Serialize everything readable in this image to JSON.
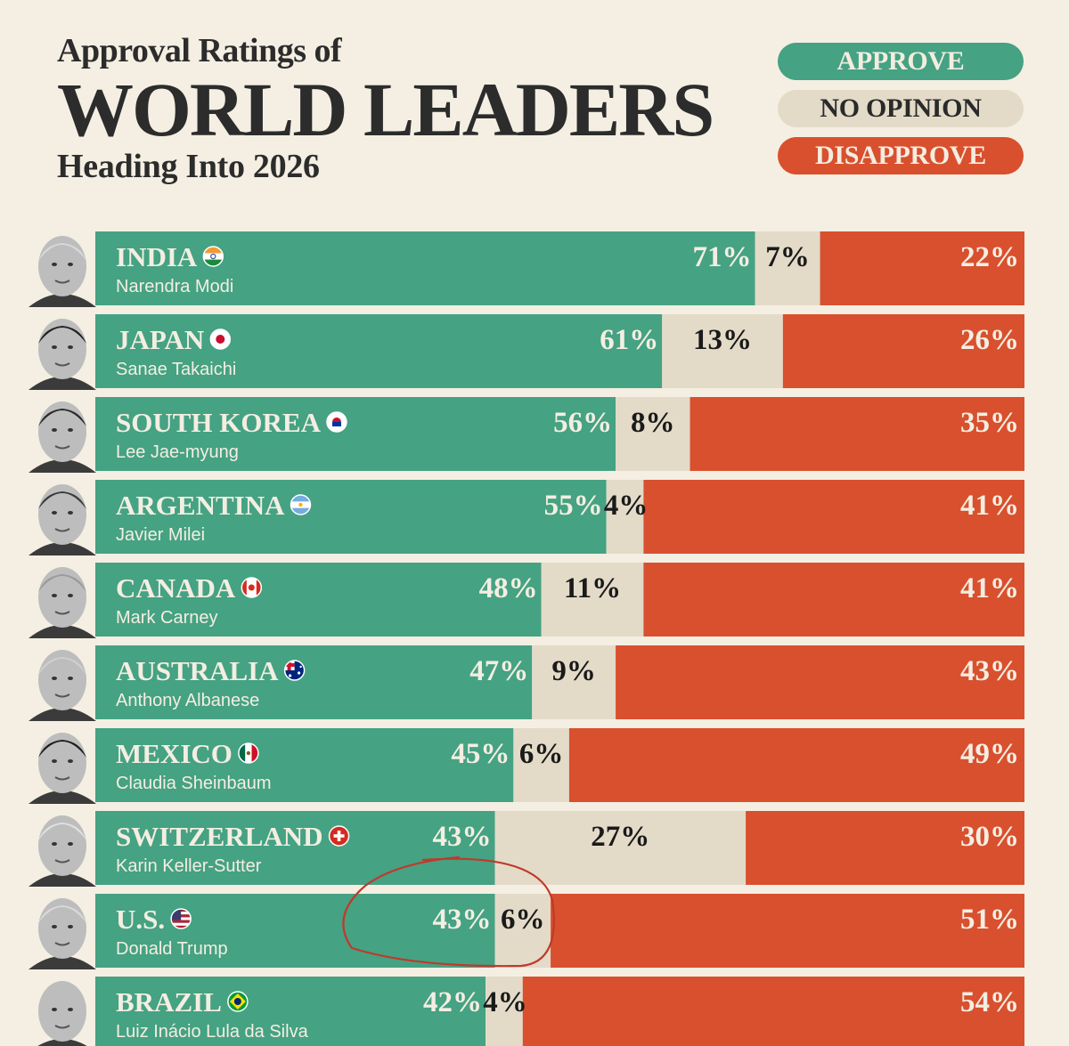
{
  "header": {
    "pre_title": "Approval Ratings of",
    "main_title": "WORLD LEADERS",
    "subtitle": "Heading Into 2026"
  },
  "legend": [
    {
      "label": "APPROVE",
      "color": "#45a283"
    },
    {
      "label": "NO OPINION",
      "color": "#e3dbc8"
    },
    {
      "label": "DISAPPROVE",
      "color": "#d9502e"
    }
  ],
  "colors": {
    "approve": "#45a283",
    "no_opinion": "#e3dbc8",
    "disapprove": "#d9502e",
    "background": "#f4efe2",
    "annotation": "#c0392b"
  },
  "chart_data": {
    "type": "bar",
    "orientation": "horizontal-stacked",
    "title": "Approval Ratings of WORLD LEADERS Heading Into 2026",
    "series": [
      {
        "name": "APPROVE",
        "values": [
          71,
          61,
          56,
          55,
          48,
          47,
          45,
          43,
          43,
          42
        ]
      },
      {
        "name": "NO OPINION",
        "values": [
          7,
          13,
          8,
          4,
          11,
          9,
          6,
          27,
          6,
          4
        ]
      },
      {
        "name": "DISAPPROVE",
        "values": [
          22,
          26,
          35,
          41,
          41,
          43,
          49,
          30,
          51,
          54
        ]
      }
    ],
    "rows": [
      {
        "country": "INDIA",
        "leader": "Narendra Modi",
        "flag": "india-flag-icon",
        "approve": 71,
        "no_opinion": 7,
        "disapprove": 22
      },
      {
        "country": "JAPAN",
        "leader": "Sanae Takaichi",
        "flag": "japan-flag-icon",
        "approve": 61,
        "no_opinion": 13,
        "disapprove": 26
      },
      {
        "country": "SOUTH KOREA",
        "leader": "Lee Jae-myung",
        "flag": "south-korea-flag-icon",
        "approve": 56,
        "no_opinion": 8,
        "disapprove": 35
      },
      {
        "country": "ARGENTINA",
        "leader": "Javier Milei",
        "flag": "argentina-flag-icon",
        "approve": 55,
        "no_opinion": 4,
        "disapprove": 41
      },
      {
        "country": "CANADA",
        "leader": "Mark Carney",
        "flag": "canada-flag-icon",
        "approve": 48,
        "no_opinion": 11,
        "disapprove": 41
      },
      {
        "country": "AUSTRALIA",
        "leader": "Anthony Albanese",
        "flag": "australia-flag-icon",
        "approve": 47,
        "no_opinion": 9,
        "disapprove": 43
      },
      {
        "country": "MEXICO",
        "leader": "Claudia Sheinbaum",
        "flag": "mexico-flag-icon",
        "approve": 45,
        "no_opinion": 6,
        "disapprove": 49
      },
      {
        "country": "SWITZERLAND",
        "leader": "Karin Keller-Sutter",
        "flag": "switzerland-flag-icon",
        "approve": 43,
        "no_opinion": 27,
        "disapprove": 30
      },
      {
        "country": "U.S.",
        "leader": "Donald Trump",
        "flag": "usa-flag-icon",
        "approve": 43,
        "no_opinion": 6,
        "disapprove": 51,
        "highlighted": true
      },
      {
        "country": "BRAZIL",
        "leader": "Luiz Inácio Lula da Silva",
        "flag": "brazil-flag-icon",
        "approve": 42,
        "no_opinion": 4,
        "disapprove": 54
      }
    ],
    "unit": "%",
    "xlim": [
      0,
      100
    ],
    "legend_position": "top-right"
  }
}
